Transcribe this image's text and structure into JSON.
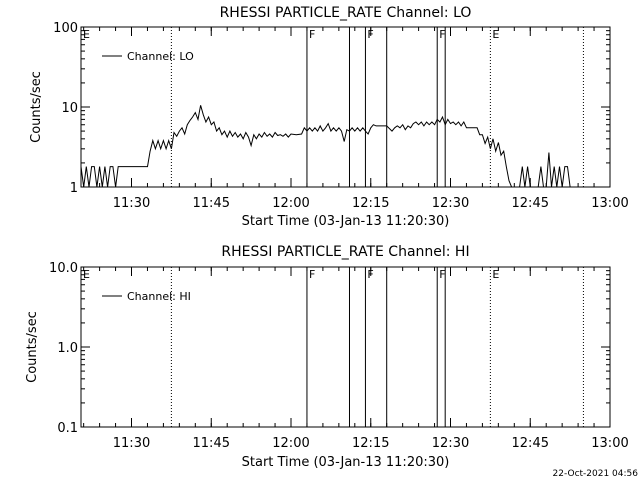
{
  "footer": {
    "timestamp": "22-Oct-2021 04:56"
  },
  "chart_data": [
    {
      "type": "line",
      "title": "RHESSI PARTICLE_RATE Channel: LO",
      "xlabel": "Start Time (03-Jan-13 11:20:30)",
      "ylabel": "Counts/sec",
      "yscale": "log",
      "ylim": [
        1,
        100
      ],
      "yticks": [
        "1",
        "10",
        "100"
      ],
      "xlim": [
        "11:20:30",
        "13:00:00"
      ],
      "xticks": [
        "11:30",
        "11:45",
        "12:00",
        "12:15",
        "12:30",
        "12:45",
        "13:00"
      ],
      "legend": {
        "position": "top-left",
        "entries": [
          "Channel: LO"
        ]
      },
      "series": [
        {
          "name": "Channel: LO",
          "color": "#000000",
          "points": [
            [
              "11:20:30",
              1.8
            ],
            [
              "11:21:00",
              1.0
            ],
            [
              "11:21:30",
              1.8
            ],
            [
              "11:22:00",
              1.0
            ],
            [
              "11:22:30",
              1.8
            ],
            [
              "11:23:00",
              1.8
            ],
            [
              "11:23:30",
              1.0
            ],
            [
              "11:24:00",
              1.8
            ],
            [
              "11:24:30",
              1.0
            ],
            [
              "11:25:00",
              1.8
            ],
            [
              "11:25:30",
              1.0
            ],
            [
              "11:26:00",
              1.8
            ],
            [
              "11:26:30",
              1.8
            ],
            [
              "11:27:00",
              1.0
            ],
            [
              "11:27:30",
              1.8
            ],
            [
              "11:28:00",
              1.8
            ],
            [
              "11:29:00",
              1.8
            ],
            [
              "11:30:00",
              1.8
            ],
            [
              "11:31:00",
              1.8
            ],
            [
              "11:32:00",
              1.8
            ],
            [
              "11:33:00",
              1.8
            ],
            [
              "11:33:30",
              2.8
            ],
            [
              "11:34:00",
              3.8
            ],
            [
              "11:34:30",
              3.0
            ],
            [
              "11:35:00",
              3.8
            ],
            [
              "11:35:30",
              3.0
            ],
            [
              "11:36:00",
              3.8
            ],
            [
              "11:36:30",
              3.0
            ],
            [
              "11:37:00",
              3.8
            ],
            [
              "11:37:30",
              3.0
            ],
            [
              "11:38:00",
              4.8
            ],
            [
              "11:38:30",
              4.3
            ],
            [
              "11:39:00",
              5.0
            ],
            [
              "11:39:30",
              5.5
            ],
            [
              "11:40:00",
              4.6
            ],
            [
              "11:40:30",
              6.0
            ],
            [
              "11:41:00",
              6.8
            ],
            [
              "11:41:30",
              7.5
            ],
            [
              "11:42:00",
              8.5
            ],
            [
              "11:42:30",
              7.0
            ],
            [
              "11:43:00",
              10.5
            ],
            [
              "11:43:30",
              8.0
            ],
            [
              "11:44:00",
              6.5
            ],
            [
              "11:44:30",
              7.5
            ],
            [
              "11:45:00",
              6.0
            ],
            [
              "11:45:30",
              6.5
            ],
            [
              "11:46:00",
              5.0
            ],
            [
              "11:46:30",
              5.5
            ],
            [
              "11:47:00",
              4.5
            ],
            [
              "11:47:30",
              5.0
            ],
            [
              "11:48:00",
              4.2
            ],
            [
              "11:48:30",
              5.0
            ],
            [
              "11:49:00",
              4.3
            ],
            [
              "11:49:30",
              4.8
            ],
            [
              "11:50:00",
              4.2
            ],
            [
              "11:50:30",
              4.6
            ],
            [
              "11:51:00",
              4.0
            ],
            [
              "11:51:30",
              4.8
            ],
            [
              "11:52:00",
              4.2
            ],
            [
              "11:52:30",
              3.3
            ],
            [
              "11:53:00",
              4.5
            ],
            [
              "11:53:30",
              4.0
            ],
            [
              "11:54:00",
              4.6
            ],
            [
              "11:54:30",
              4.2
            ],
            [
              "11:55:00",
              4.8
            ],
            [
              "11:55:30",
              4.3
            ],
            [
              "11:56:00",
              4.6
            ],
            [
              "11:56:30",
              4.2
            ],
            [
              "11:57:00",
              4.8
            ],
            [
              "11:57:30",
              4.4
            ],
            [
              "11:58:00",
              4.5
            ],
            [
              "11:58:30",
              4.3
            ],
            [
              "11:59:00",
              4.6
            ],
            [
              "11:59:30",
              4.2
            ],
            [
              "12:00:00",
              4.6
            ],
            [
              "12:01:00",
              4.5
            ],
            [
              "12:02:00",
              4.6
            ],
            [
              "12:02:30",
              5.5
            ],
            [
              "12:03:00",
              5.0
            ],
            [
              "12:03:30",
              5.5
            ],
            [
              "12:04:00",
              5.0
            ],
            [
              "12:04:30",
              5.5
            ],
            [
              "12:05:00",
              5.0
            ],
            [
              "12:05:30",
              5.8
            ],
            [
              "12:06:00",
              5.0
            ],
            [
              "12:06:30",
              5.5
            ],
            [
              "12:07:00",
              6.2
            ],
            [
              "12:07:30",
              5.0
            ],
            [
              "12:08:00",
              5.5
            ],
            [
              "12:08:30",
              5.0
            ],
            [
              "12:09:00",
              5.5
            ],
            [
              "12:09:30",
              5.0
            ],
            [
              "12:10:00",
              3.7
            ],
            [
              "12:10:30",
              5.2
            ],
            [
              "12:11:00",
              5.0
            ],
            [
              "12:11:30",
              5.5
            ],
            [
              "12:12:00",
              5.0
            ],
            [
              "12:12:30",
              5.5
            ],
            [
              "12:13:00",
              5.0
            ],
            [
              "12:13:30",
              5.5
            ],
            [
              "12:14:00",
              5.0
            ],
            [
              "12:14:30",
              4.6
            ],
            [
              "12:15:00",
              5.5
            ],
            [
              "12:15:30",
              6.0
            ],
            [
              "12:16:00",
              5.8
            ],
            [
              "12:17:00",
              5.8
            ],
            [
              "12:18:00",
              5.8
            ],
            [
              "12:19:00",
              5.0
            ],
            [
              "12:19:30",
              5.5
            ],
            [
              "12:20:00",
              5.8
            ],
            [
              "12:20:30",
              5.5
            ],
            [
              "12:21:00",
              6.0
            ],
            [
              "12:21:30",
              5.2
            ],
            [
              "12:22:00",
              5.8
            ],
            [
              "12:22:30",
              5.5
            ],
            [
              "12:23:00",
              6.2
            ],
            [
              "12:23:30",
              6.5
            ],
            [
              "12:24:00",
              6.0
            ],
            [
              "12:24:30",
              6.5
            ],
            [
              "12:25:00",
              5.8
            ],
            [
              "12:25:30",
              6.5
            ],
            [
              "12:26:00",
              6.0
            ],
            [
              "12:26:30",
              6.5
            ],
            [
              "12:27:00",
              6.0
            ],
            [
              "12:27:30",
              7.0
            ],
            [
              "12:28:00",
              6.5
            ],
            [
              "12:28:30",
              7.5
            ],
            [
              "12:29:00",
              6.0
            ],
            [
              "12:29:30",
              7.0
            ],
            [
              "12:30:00",
              6.2
            ],
            [
              "12:30:30",
              6.5
            ],
            [
              "12:31:00",
              6.0
            ],
            [
              "12:31:30",
              6.5
            ],
            [
              "12:32:00",
              5.8
            ],
            [
              "12:32:30",
              6.5
            ],
            [
              "12:33:00",
              5.5
            ],
            [
              "12:34:00",
              5.5
            ],
            [
              "12:35:00",
              5.5
            ],
            [
              "12:35:30",
              4.5
            ],
            [
              "12:36:00",
              4.5
            ],
            [
              "12:36:30",
              3.5
            ],
            [
              "12:37:00",
              4.2
            ],
            [
              "12:37:30",
              3.0
            ],
            [
              "12:38:00",
              4.0
            ],
            [
              "12:38:30",
              2.8
            ],
            [
              "12:39:00",
              3.6
            ],
            [
              "12:39:30",
              2.5
            ],
            [
              "12:40:00",
              2.8
            ],
            [
              "12:40:30",
              1.8
            ],
            [
              "12:41:00",
              1.2
            ],
            [
              "12:41:30",
              1.0
            ],
            [
              "12:42:00",
              1.0
            ],
            [
              "12:42:30",
              1.0
            ],
            [
              "12:43:00",
              1.0
            ],
            [
              "12:43:30",
              1.8
            ],
            [
              "12:44:00",
              1.0
            ],
            [
              "12:44:30",
              1.8
            ],
            [
              "12:45:00",
              1.0
            ],
            [
              "12:45:30",
              1.0
            ],
            [
              "12:46:00",
              1.0
            ],
            [
              "12:46:30",
              1.0
            ],
            [
              "12:47:00",
              1.8
            ],
            [
              "12:47:30",
              1.0
            ],
            [
              "12:48:00",
              1.0
            ],
            [
              "12:48:30",
              2.7
            ],
            [
              "12:49:00",
              1.0
            ],
            [
              "12:49:30",
              1.8
            ],
            [
              "12:50:00",
              1.0
            ],
            [
              "12:50:30",
              1.8
            ],
            [
              "12:51:00",
              1.0
            ],
            [
              "12:51:30",
              1.8
            ],
            [
              "12:52:00",
              1.8
            ],
            [
              "12:52:30",
              1.0
            ]
          ]
        }
      ],
      "event_markers": [
        {
          "time": "11:37:30",
          "label": "",
          "style": "dotted"
        },
        {
          "time": "12:03:00",
          "label": "F",
          "style": "solid"
        },
        {
          "time": "12:11:00",
          "label": "",
          "style": "solid"
        },
        {
          "time": "12:14:00",
          "label": "F",
          "style": "solid"
        },
        {
          "time": "12:18:00",
          "label": "",
          "style": "solid"
        },
        {
          "time": "12:27:30",
          "label": "F",
          "style": "solid"
        },
        {
          "time": "12:29:00",
          "label": "",
          "style": "solid"
        },
        {
          "time": "12:37:30",
          "label": "E",
          "style": "dotted"
        },
        {
          "time": "12:55:00",
          "label": "",
          "style": "dotted"
        }
      ],
      "corner_label": "E"
    },
    {
      "type": "line",
      "title": "RHESSI PARTICLE_RATE Channel: HI",
      "xlabel": "Start Time (03-Jan-13 11:20:30)",
      "ylabel": "Counts/sec",
      "yscale": "log",
      "ylim": [
        0.1,
        10
      ],
      "yticks": [
        "0.1",
        "1.0",
        "10.0"
      ],
      "xlim": [
        "11:20:30",
        "13:00:00"
      ],
      "xticks": [
        "11:30",
        "11:45",
        "12:00",
        "12:15",
        "12:30",
        "12:45",
        "13:00"
      ],
      "legend": {
        "position": "top-left",
        "entries": [
          "Channel: HI"
        ]
      },
      "series": [
        {
          "name": "Channel: HI",
          "color": "#000000",
          "points": []
        }
      ],
      "event_markers": [
        {
          "time": "11:37:30",
          "label": "",
          "style": "dotted"
        },
        {
          "time": "12:03:00",
          "label": "F",
          "style": "solid"
        },
        {
          "time": "12:11:00",
          "label": "",
          "style": "solid"
        },
        {
          "time": "12:14:00",
          "label": "F",
          "style": "solid"
        },
        {
          "time": "12:18:00",
          "label": "",
          "style": "solid"
        },
        {
          "time": "12:27:30",
          "label": "F",
          "style": "solid"
        },
        {
          "time": "12:29:00",
          "label": "",
          "style": "solid"
        },
        {
          "time": "12:37:30",
          "label": "E",
          "style": "dotted"
        },
        {
          "time": "12:55:00",
          "label": "",
          "style": "dotted"
        }
      ],
      "corner_label": "E"
    }
  ]
}
